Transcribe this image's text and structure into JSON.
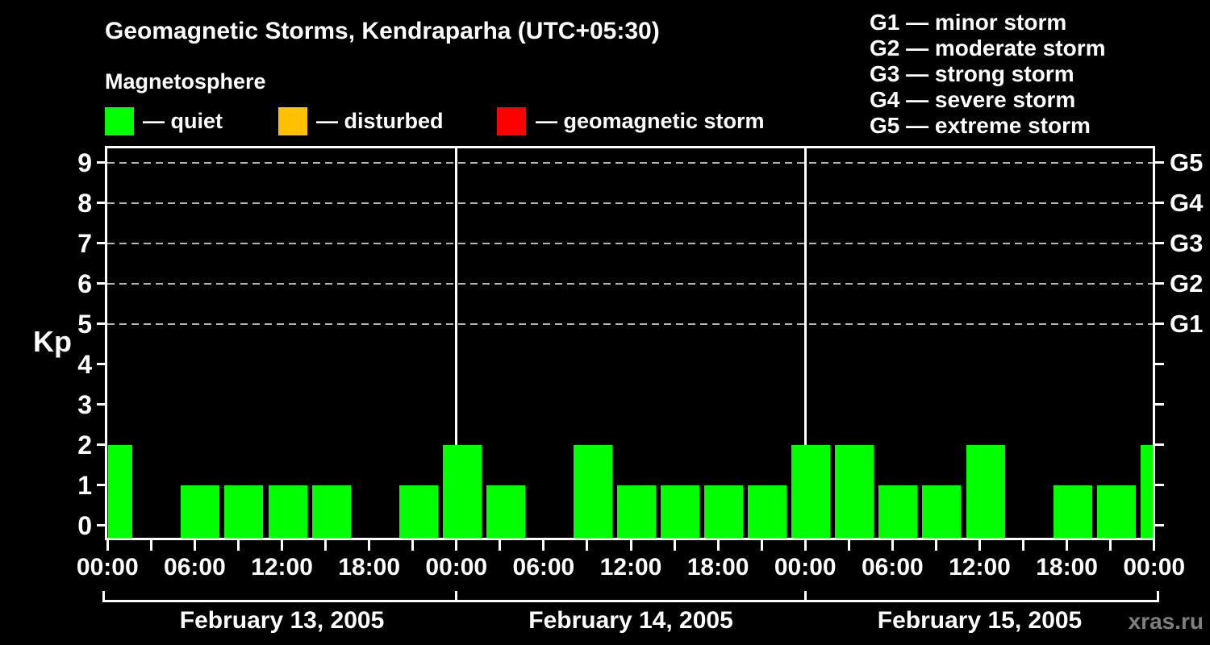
{
  "title": "Geomagnetic Storms, Kendraparha (UTC+05:30)",
  "subtitle": "Magnetosphere",
  "watermark": "xras.ru",
  "colors": {
    "background": "#000000",
    "axis": "#ffffff",
    "grid": "#b3b3b3",
    "quiet": "#00ff00",
    "disturbed": "#ffc000",
    "storm": "#ff0000",
    "watermark": "#7f7f7f"
  },
  "legend": {
    "items": [
      {
        "name": "quiet",
        "label": "— quiet",
        "color": "#00ff00"
      },
      {
        "name": "disturbed",
        "label": "— disturbed",
        "color": "#ffc000"
      },
      {
        "name": "storm",
        "label": "— geomagnetic storm",
        "color": "#ff0000"
      }
    ]
  },
  "storm_scale": [
    "G1 — minor storm",
    "G2 — moderate storm",
    "G3 — strong storm",
    "G4 — severe storm",
    "G5 — extreme storm"
  ],
  "chart_data": {
    "type": "bar",
    "title": "Geomagnetic Storms, Kendraparha (UTC+05:30)",
    "ylabel": "Kp",
    "ylim": [
      -0.31,
      9.4
    ],
    "yticks": [
      0,
      1,
      2,
      3,
      4,
      5,
      6,
      7,
      8,
      9
    ],
    "grid_levels": [
      5,
      6,
      7,
      8,
      9
    ],
    "grid_style": "dashed",
    "right_axis": [
      {
        "kp": 5,
        "label": "G1"
      },
      {
        "kp": 6,
        "label": "G2"
      },
      {
        "kp": 7,
        "label": "G3"
      },
      {
        "kp": 8,
        "label": "G4"
      },
      {
        "kp": 9,
        "label": "G5"
      }
    ],
    "interval_hours": 3,
    "x_tick_every_hours": 3,
    "x_label_every_hours": 6,
    "x_tick_labels": [
      "00:00",
      "06:00",
      "12:00",
      "18:00",
      "00:00",
      "06:00",
      "12:00",
      "18:00",
      "00:00",
      "06:00",
      "12:00",
      "18:00",
      "00:00"
    ],
    "bar_color": "#00ff00",
    "days": [
      {
        "date": "February 13, 2005",
        "kp": [
          2,
          0,
          1,
          1,
          1,
          1,
          0,
          1
        ]
      },
      {
        "date": "February 14, 2005",
        "kp": [
          2,
          1,
          0,
          2,
          1,
          1,
          1,
          1
        ]
      },
      {
        "date": "February 15, 2005",
        "kp": [
          2,
          2,
          1,
          1,
          2,
          0,
          1,
          1
        ]
      }
    ],
    "trailing_bar": {
      "hour": 72,
      "kp": 2
    },
    "legend_position": "top"
  }
}
